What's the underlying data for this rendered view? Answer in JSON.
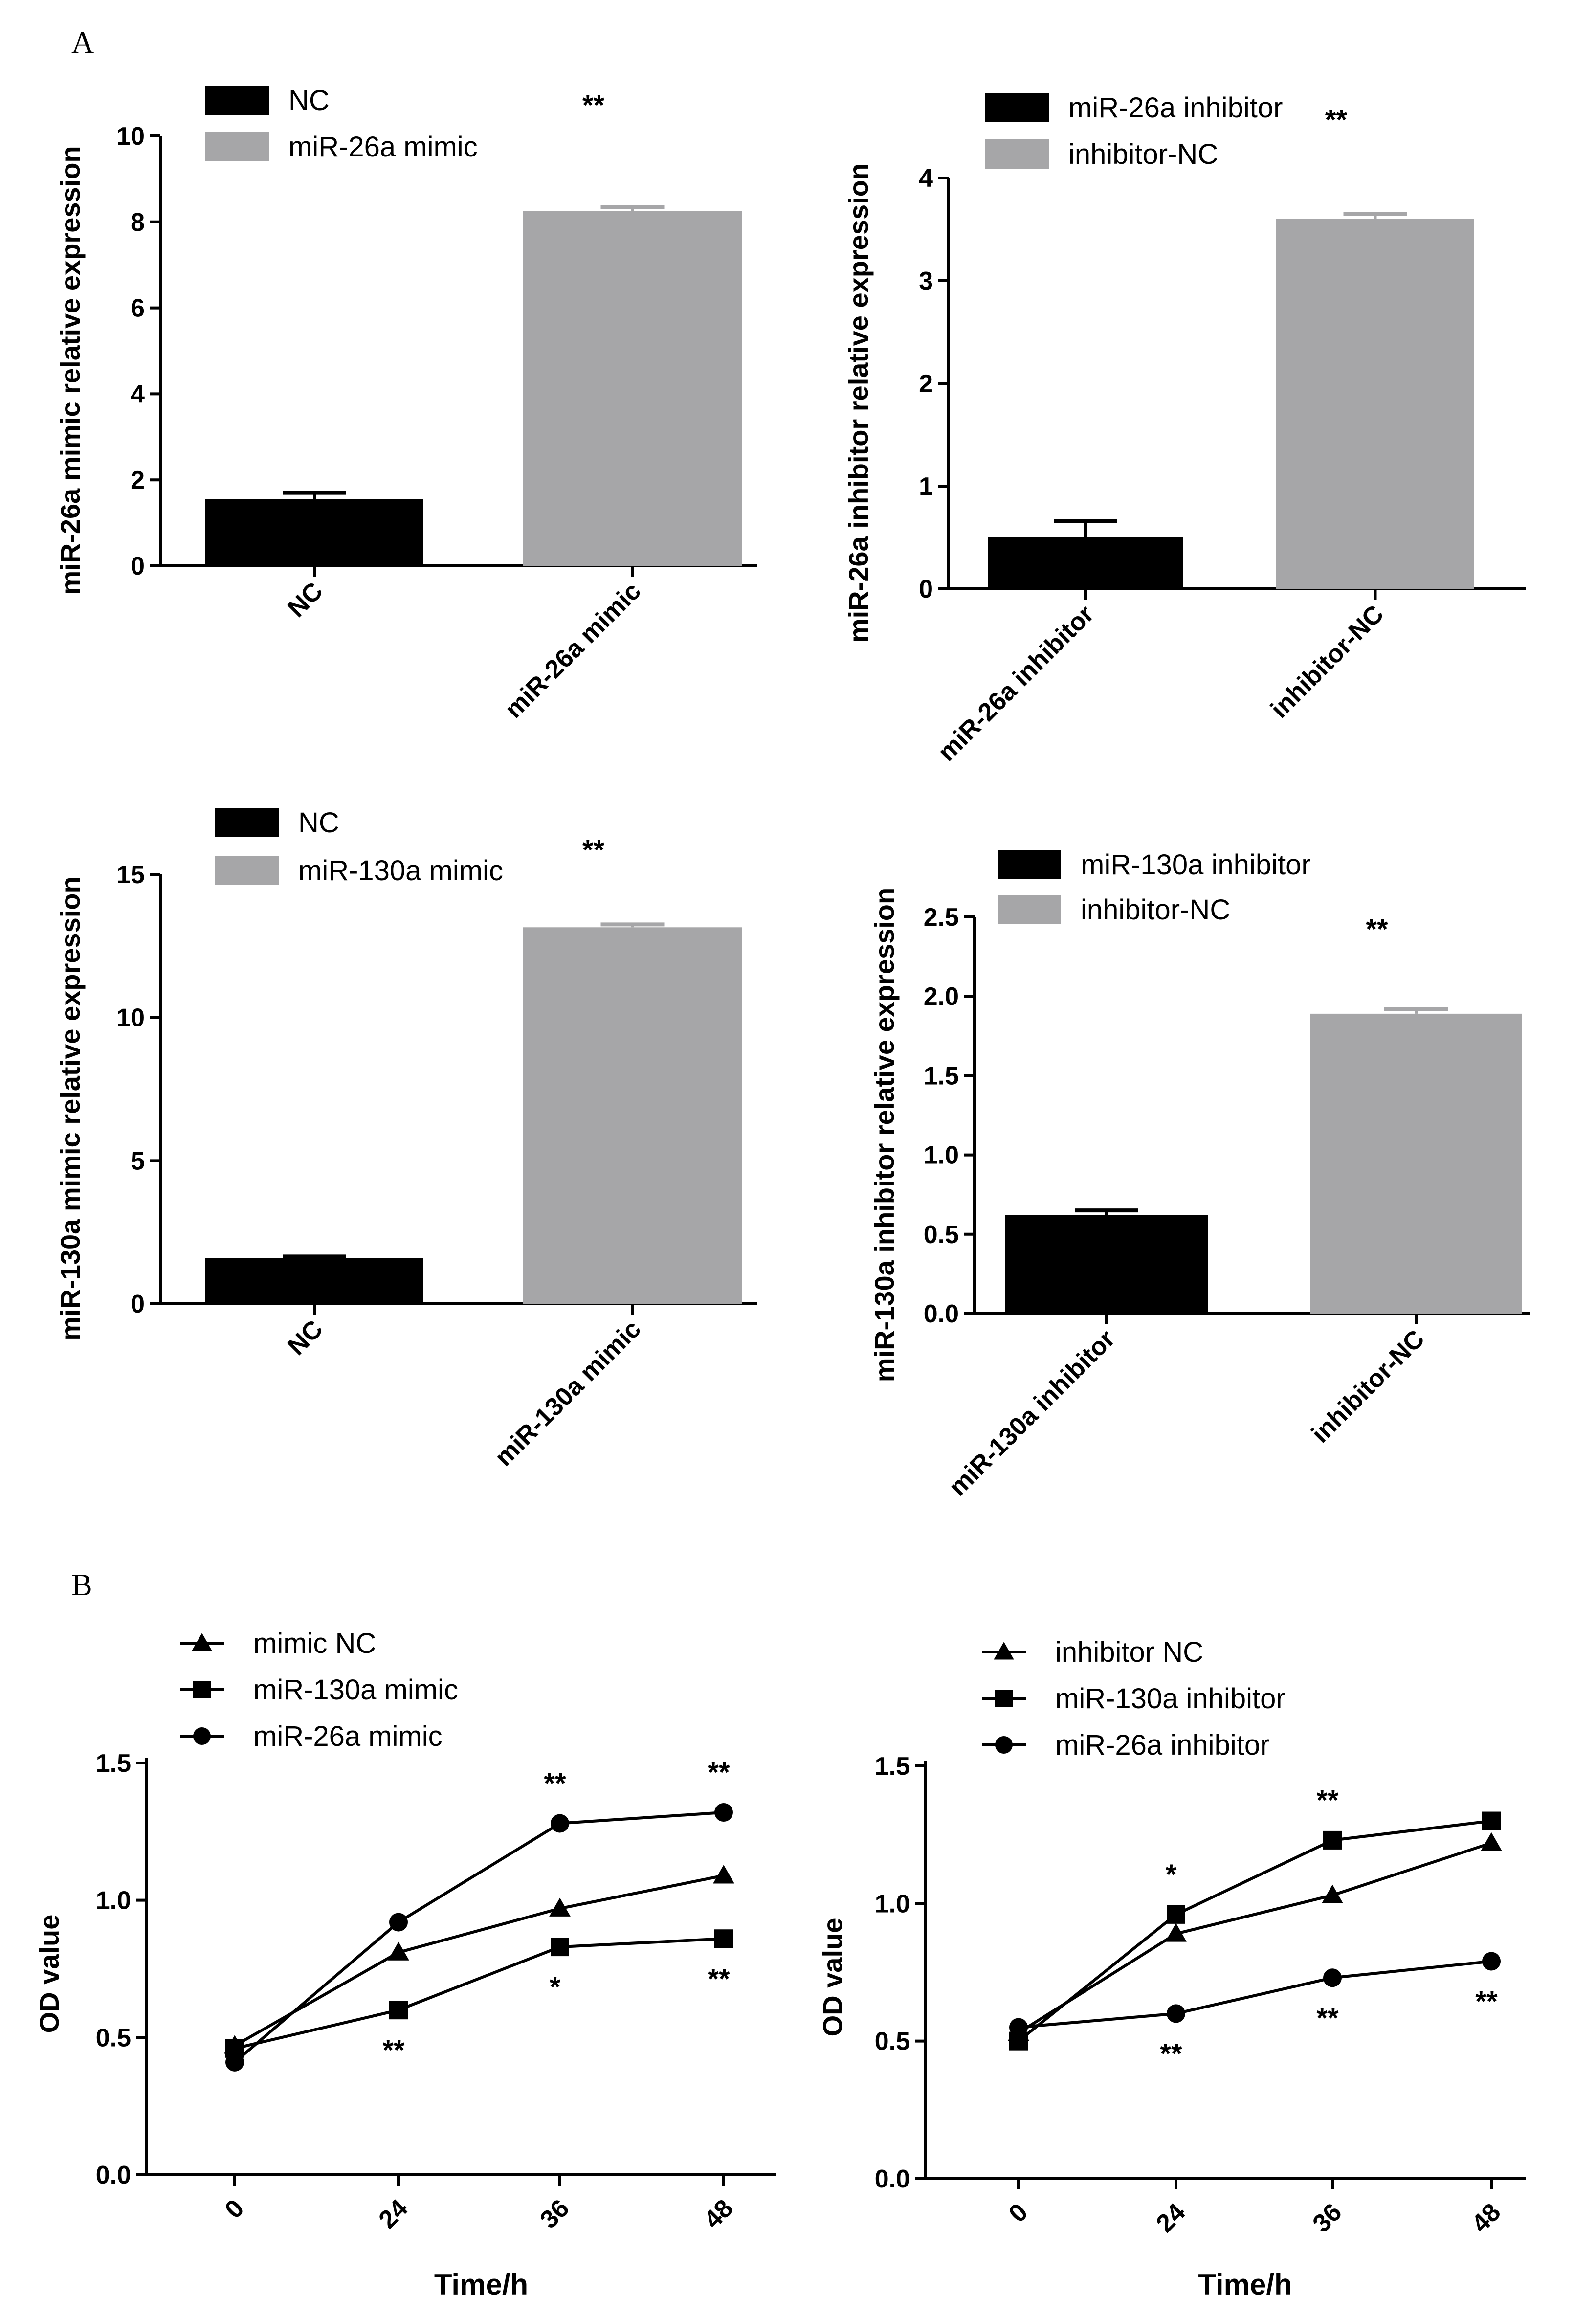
{
  "panel_labels": {
    "a": "A",
    "b": "B"
  },
  "colors": {
    "black": "#000000",
    "gray": "#a6a6a8"
  },
  "chart_data": [
    {
      "type": "bar",
      "categories": [
        "NC",
        "miR-26a mimic"
      ],
      "values": [
        1.55,
        8.25
      ],
      "errors": [
        0.15,
        0.1
      ],
      "colors": [
        "#000000",
        "#a6a6a8"
      ],
      "legend": [
        "NC",
        "miR-26a mimic"
      ],
      "ylabel": "miR-26a mimic relative expression",
      "ylim": [
        0,
        10
      ],
      "yticks": [
        0,
        2,
        4,
        6,
        8,
        10
      ],
      "ytick_labels": [
        "0",
        "2",
        "4",
        "6",
        "8",
        "10"
      ],
      "significance": "**"
    },
    {
      "type": "bar",
      "categories": [
        "miR-26a inhibitor",
        "inhibitor-NC"
      ],
      "values": [
        0.5,
        3.6
      ],
      "errors": [
        0.16,
        0.05
      ],
      "colors": [
        "#000000",
        "#a6a6a8"
      ],
      "legend": [
        "miR-26a inhibitor",
        "inhibitor-NC"
      ],
      "ylabel": "miR-26a inhibitor relative expression",
      "ylim": [
        0,
        4
      ],
      "yticks": [
        0,
        1,
        2,
        3,
        4
      ],
      "ytick_labels": [
        "0",
        "1",
        "2",
        "3",
        "4"
      ],
      "significance": "**"
    },
    {
      "type": "bar",
      "categories": [
        "NC",
        "miR-130a mimic"
      ],
      "values": [
        1.6,
        13.15
      ],
      "errors": [
        0.05,
        0.1
      ],
      "colors": [
        "#000000",
        "#a6a6a8"
      ],
      "legend": [
        "NC",
        "miR-130a mimic"
      ],
      "ylabel": "miR-130a mimic relative expression",
      "ylim": [
        0,
        15
      ],
      "yticks": [
        0,
        5,
        10,
        15
      ],
      "ytick_labels": [
        "0",
        "5",
        "10",
        "15"
      ],
      "significance": "**"
    },
    {
      "type": "bar",
      "categories": [
        "miR-130a inhibitor",
        "inhibitor-NC"
      ],
      "values": [
        0.62,
        1.89
      ],
      "errors": [
        0.03,
        0.03
      ],
      "colors": [
        "#000000",
        "#a6a6a8"
      ],
      "legend": [
        "miR-130a inhibitor",
        "inhibitor-NC"
      ],
      "ylabel": "miR-130a inhibitor relative expression",
      "ylim": [
        0,
        2.5
      ],
      "yticks": [
        0,
        0.5,
        1.0,
        1.5,
        2.0,
        2.5
      ],
      "ytick_labels": [
        "0.0",
        "0.5",
        "1.0",
        "1.5",
        "2.0",
        "2.5"
      ],
      "significance": "**"
    },
    {
      "type": "line",
      "x": [
        0,
        24,
        36,
        48
      ],
      "xtick_labels": [
        "0",
        "24",
        "36",
        "48"
      ],
      "xlabel": "Time/h",
      "ylabel": "OD value",
      "ylim": [
        0,
        1.5
      ],
      "yticks": [
        0,
        0.5,
        1.0,
        1.5
      ],
      "ytick_labels": [
        "0.0",
        "0.5",
        "1.0",
        "1.5"
      ],
      "series": [
        {
          "name": "mimic NC",
          "marker": "triangle",
          "values": [
            0.47,
            0.81,
            0.97,
            1.09
          ]
        },
        {
          "name": "miR-130a mimic",
          "marker": "square",
          "values": [
            0.46,
            0.6,
            0.83,
            0.86
          ]
        },
        {
          "name": "miR-26a mimic",
          "marker": "circle",
          "values": [
            0.41,
            0.92,
            1.28,
            1.32
          ]
        }
      ],
      "annotations": [
        {
          "x": 24,
          "y": 0.6,
          "text": "**",
          "pos": "below"
        },
        {
          "x": 36,
          "y": 1.28,
          "text": "**",
          "pos": "above"
        },
        {
          "x": 36,
          "y": 0.83,
          "text": "*",
          "pos": "below"
        },
        {
          "x": 48,
          "y": 1.32,
          "text": "**",
          "pos": "above"
        },
        {
          "x": 48,
          "y": 0.86,
          "text": "**",
          "pos": "below"
        }
      ]
    },
    {
      "type": "line",
      "x": [
        0,
        24,
        36,
        48
      ],
      "xtick_labels": [
        "0",
        "24",
        "36",
        "48"
      ],
      "xlabel": "Time/h",
      "ylabel": "OD value",
      "ylim": [
        0,
        1.5
      ],
      "yticks": [
        0,
        0.5,
        1.0,
        1.5
      ],
      "ytick_labels": [
        "0.0",
        "0.5",
        "1.0",
        "1.5"
      ],
      "series": [
        {
          "name": "inhibitor NC",
          "marker": "triangle",
          "values": [
            0.53,
            0.89,
            1.03,
            1.22
          ]
        },
        {
          "name": "miR-130a inhibitor",
          "marker": "square",
          "values": [
            0.5,
            0.96,
            1.23,
            1.3
          ]
        },
        {
          "name": "miR-26a inhibitor",
          "marker": "circle",
          "values": [
            0.55,
            0.6,
            0.73,
            0.79
          ]
        }
      ],
      "annotations": [
        {
          "x": 24,
          "y": 0.96,
          "text": "*",
          "pos": "above"
        },
        {
          "x": 24,
          "y": 0.6,
          "text": "**",
          "pos": "below"
        },
        {
          "x": 36,
          "y": 1.23,
          "text": "**",
          "pos": "above"
        },
        {
          "x": 36,
          "y": 0.73,
          "text": "**",
          "pos": "below"
        },
        {
          "x": 48,
          "y": 0.79,
          "text": "**",
          "pos": "below"
        }
      ]
    }
  ]
}
